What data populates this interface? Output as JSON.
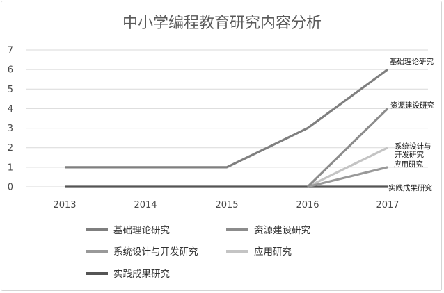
{
  "chart_data": {
    "type": "line",
    "title": "中小学编程教育研究内容分析",
    "x": [
      "2013",
      "2014",
      "2015",
      "2016",
      "2017"
    ],
    "ylim": [
      0,
      7
    ],
    "yticks": [
      0,
      1,
      2,
      3,
      4,
      5,
      6,
      7
    ],
    "grid": true,
    "legend_position": "bottom",
    "series": [
      {
        "name": "基础理论研究",
        "end_label": "基础理论研究",
        "color": "#7f7f7f",
        "values": [
          1,
          1,
          1,
          3,
          6
        ]
      },
      {
        "name": "资源建设研究",
        "end_label": "资源建设研究",
        "color": "#8c8c8c",
        "values": [
          null,
          null,
          null,
          0,
          4
        ]
      },
      {
        "name": "系统设计与开发研究",
        "end_label": [
          "系统设计与",
          "开发研究"
        ],
        "color": "#999999",
        "values": [
          null,
          null,
          null,
          0,
          1
        ]
      },
      {
        "name": "应用研究",
        "end_label": "应用研究",
        "color": "#c4c4c4",
        "values": [
          null,
          null,
          null,
          0,
          2
        ]
      },
      {
        "name": "实践成果研究",
        "end_label": "实践成果研究",
        "color": "#555555",
        "values": [
          0,
          0,
          0,
          0,
          0
        ]
      }
    ]
  }
}
